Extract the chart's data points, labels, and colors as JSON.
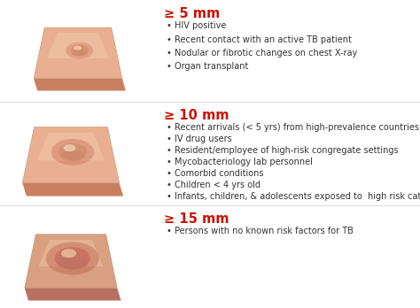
{
  "background_color": "#ffffff",
  "sections": [
    {
      "threshold": "≥ 5 mm",
      "threshold_color": "#cc1100",
      "bullets": [
        "HIV positive",
        "Recent contact with an active TB patient",
        "Nodular or fibrotic changes on chest X-ray",
        "Organ transplant"
      ],
      "base_color": "#e8b090",
      "shadow_color": "#c88060",
      "bump_color": "#d09070",
      "bump_highlight": "#f0c8a8",
      "bump_redness": "#d07050",
      "bump_scale": 0.7
    },
    {
      "threshold": "≥ 10 mm",
      "threshold_color": "#cc1100",
      "bullets": [
        "Recent arrivals (< 5 yrs) from high-prevalence countries",
        "IV drug users",
        "Resident/employee of high-risk congregate settings",
        "Mycobacteriology lab personnel",
        "Comorbid conditions",
        "Children < 4 yrs old",
        "Infants, children, & adolescents exposed to  high risk categories"
      ],
      "base_color": "#e8b090",
      "shadow_color": "#c88060",
      "bump_color": "#d09070",
      "bump_highlight": "#f0c8a8",
      "bump_redness": "#c86050",
      "bump_scale": 1.0
    },
    {
      "threshold": "≥ 15 mm",
      "threshold_color": "#cc1100",
      "bullets": [
        "Persons with no known risk factors for TB"
      ],
      "base_color": "#d8a080",
      "shadow_color": "#b87060",
      "bump_color": "#c87060",
      "bump_highlight": "#e8b898",
      "bump_redness": "#b85040",
      "bump_scale": 1.3
    }
  ],
  "divider_color": "#dddddd",
  "text_color": "#333333",
  "bullet_fontsize": 7.0,
  "header_fontsize": 10.5
}
